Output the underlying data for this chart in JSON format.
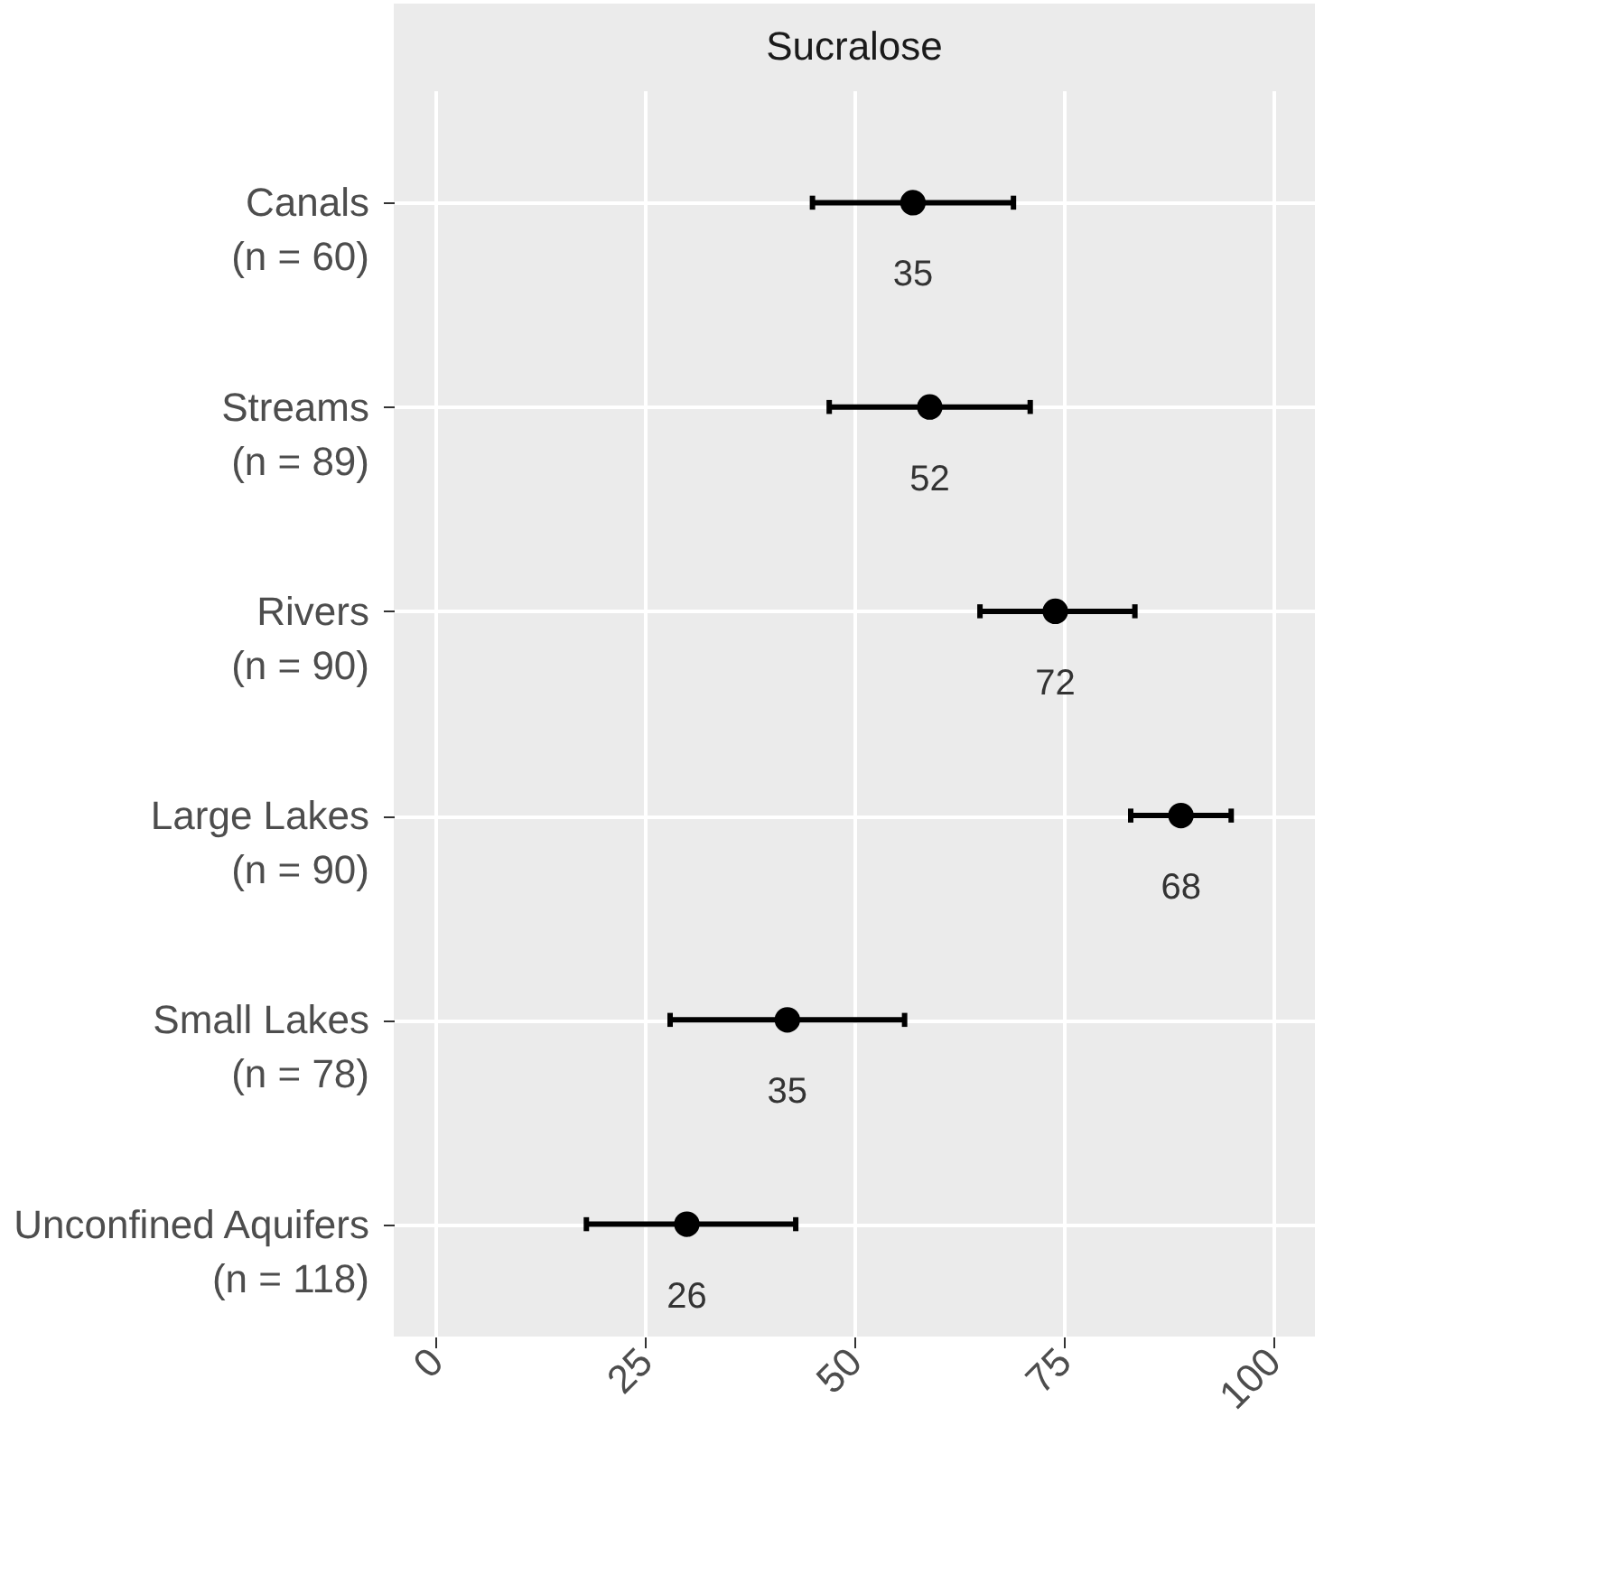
{
  "chart_data": {
    "type": "scatter",
    "orientation": "horizontal",
    "title": "Sucralose",
    "categories": [
      "Canals\n(n = 60)",
      "Streams\n(n = 89)",
      "Rivers\n(n = 90)",
      "Large Lakes\n(n = 90)",
      "Small Lakes\n(n = 78)",
      "Unconfined Aquifers\n(n = 118)"
    ],
    "series": [
      {
        "color": "#000000",
        "values": [
          57,
          59,
          74,
          89,
          42,
          30
        ],
        "errors": [
          [
            45,
            69
          ],
          [
            47,
            71
          ],
          [
            65,
            83.5
          ],
          [
            83,
            95
          ],
          [
            28,
            56
          ],
          [
            18,
            43
          ]
        ]
      }
    ],
    "marker": "circle",
    "xlim": [
      -5,
      105
    ],
    "xticks": [
      0,
      25,
      50,
      75,
      100
    ],
    "grid": true,
    "annotations": [
      "35",
      "52",
      "72",
      "68",
      "35",
      "26"
    ]
  }
}
